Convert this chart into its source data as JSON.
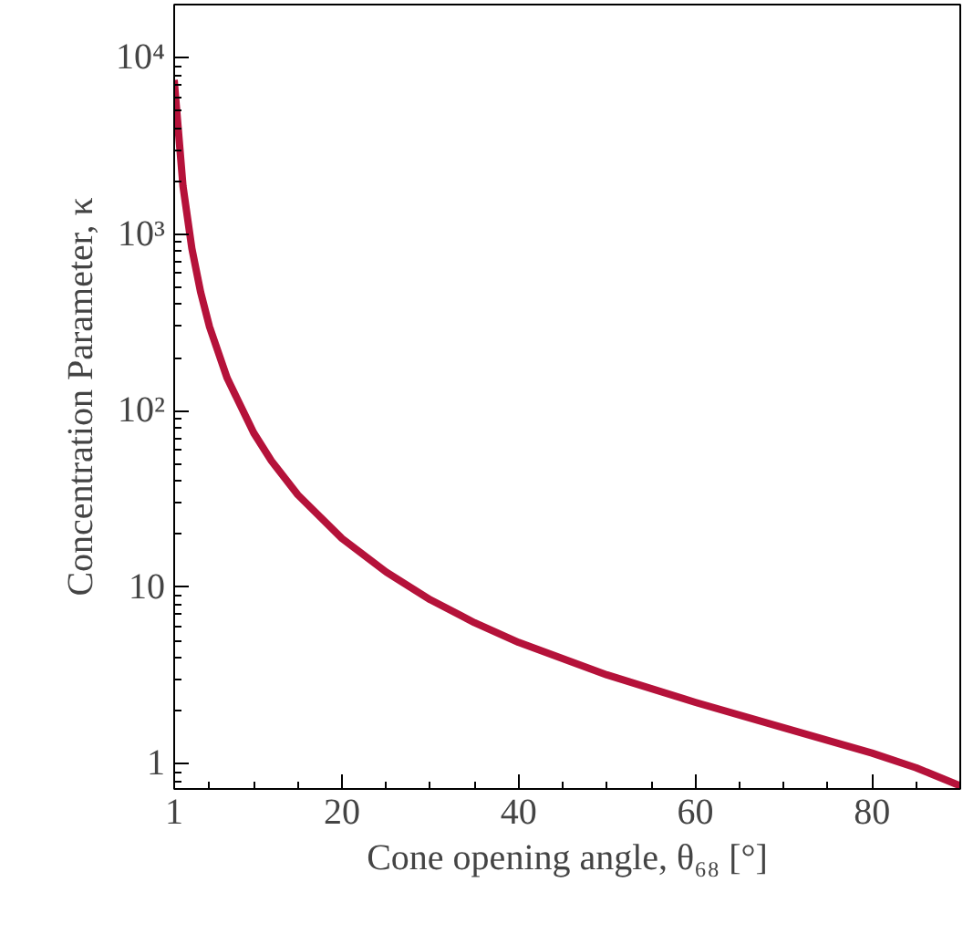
{
  "chart_data": {
    "type": "line",
    "xlabel": "Cone opening angle, θ₆₈ [°]",
    "ylabel": "Concentration Parameter, κ",
    "x": [
      1,
      2,
      3,
      4,
      5,
      7,
      10,
      12,
      15,
      20,
      25,
      30,
      35,
      40,
      50,
      60,
      70,
      80,
      85,
      90
    ],
    "series": [
      {
        "color": "#b5123a",
        "values": [
          7480,
          1870,
          832,
          468,
          299,
          153,
          75.0,
          52.1,
          33.4,
          18.9,
          12.2,
          8.5,
          6.3,
          4.87,
          3.19,
          2.23,
          1.6,
          1.15,
          0.95,
          0.75
        ]
      }
    ],
    "log": "y",
    "xlim": [
      1,
      90
    ],
    "ylim": [
      0.72,
      20000
    ],
    "xticks": [
      1,
      20,
      40,
      60,
      80
    ],
    "yticks": [
      1,
      10,
      {
        "value": 100,
        "label": "10²"
      },
      {
        "value": 1000,
        "label": "10³"
      },
      {
        "value": 10000,
        "label": "10⁴"
      }
    ],
    "grid": false,
    "marker": "none",
    "line_style": "solid"
  }
}
